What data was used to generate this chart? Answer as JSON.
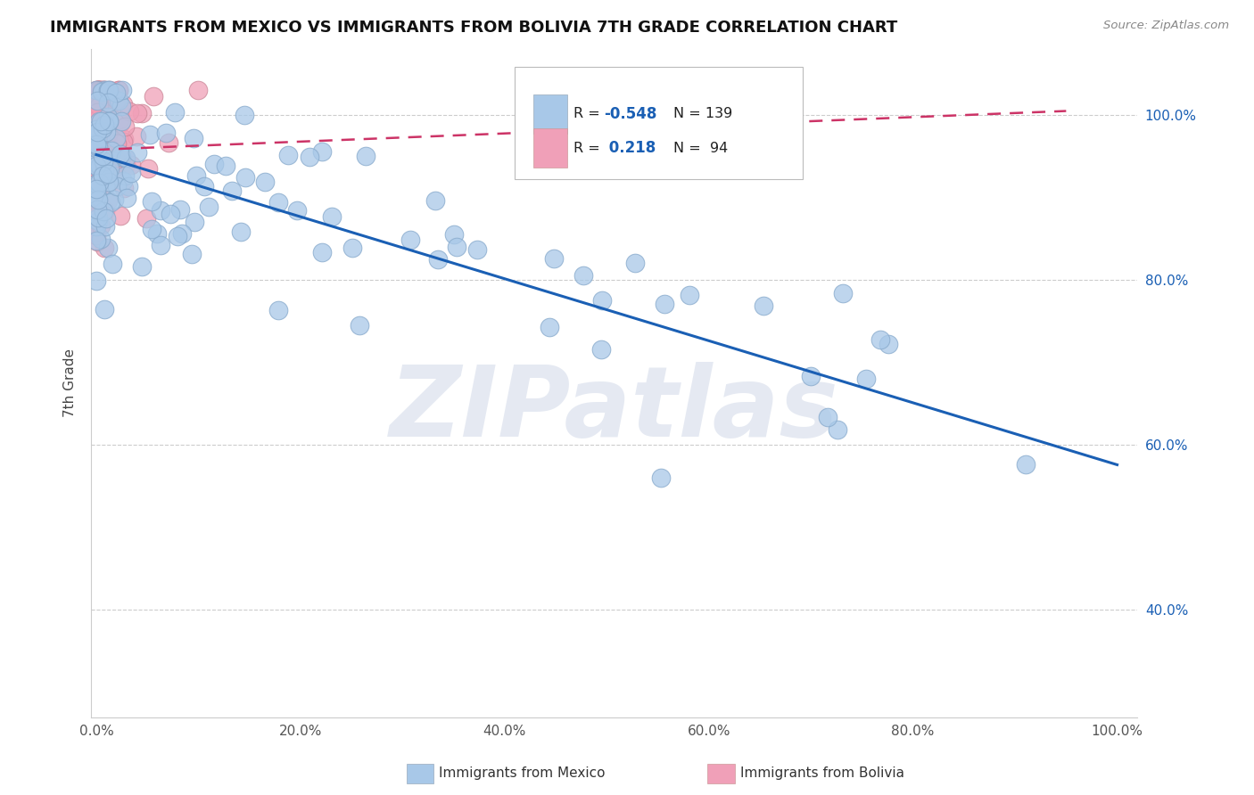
{
  "title": "IMMIGRANTS FROM MEXICO VS IMMIGRANTS FROM BOLIVIA 7TH GRADE CORRELATION CHART",
  "source": "Source: ZipAtlas.com",
  "ylabel": "7th Grade",
  "mexico_R": -0.548,
  "mexico_N": 139,
  "bolivia_R": 0.218,
  "bolivia_N": 94,
  "mexico_color": "#a8c8e8",
  "bolivia_color": "#f0a0b8",
  "mexico_edge_color": "#88aacc",
  "bolivia_edge_color": "#cc8899",
  "mexico_line_color": "#1a5fb4",
  "bolivia_line_color": "#cc3366",
  "background_color": "#ffffff",
  "watermark": "ZIPatlas",
  "legend_mexico_label": "Immigrants from Mexico",
  "legend_bolivia_label": "Immigrants from Bolivia",
  "xlim": [
    -0.005,
    1.02
  ],
  "ylim": [
    0.27,
    1.08
  ],
  "xtick_vals": [
    0.0,
    0.2,
    0.4,
    0.6,
    0.8,
    1.0
  ],
  "ytick_vals": [
    0.4,
    0.6,
    0.8,
    1.0
  ],
  "mexico_trendline": [
    0.0,
    0.952,
    1.0,
    0.576
  ],
  "bolivia_trendline": [
    0.0,
    0.958,
    0.95,
    1.005
  ]
}
